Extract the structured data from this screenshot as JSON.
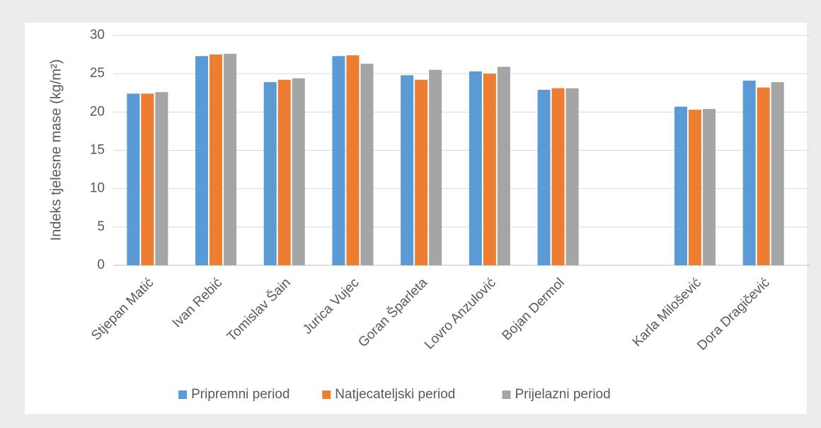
{
  "chart_data": {
    "type": "bar",
    "y_label": "Indeks tjelesne mase (kg/m²)",
    "categories": [
      "Stjepan Matić",
      "Ivan Rebić",
      "Tomislav Šain",
      "Jurica Vujec",
      "Goran Šparleta",
      "Lovro Anzulović",
      "Bojan Dermol",
      null,
      "Karla Milošević",
      "Dora Dragičević"
    ],
    "series": [
      {
        "name": "Pripremni period",
        "color": "#5b9bd5",
        "values": [
          22.4,
          27.3,
          23.9,
          27.3,
          24.8,
          25.3,
          22.9,
          null,
          20.7,
          24.1
        ]
      },
      {
        "name": "Natjecateljski period",
        "color": "#ed7d31",
        "values": [
          22.4,
          27.5,
          24.2,
          27.4,
          24.2,
          25.0,
          23.1,
          null,
          20.3,
          23.2
        ]
      },
      {
        "name": "Prijelazni period",
        "color": "#a5a5a5",
        "values": [
          22.6,
          27.6,
          24.4,
          26.3,
          25.5,
          25.9,
          23.1,
          null,
          20.4,
          23.9
        ]
      }
    ],
    "ylim": [
      0,
      30
    ],
    "yticks": [
      0,
      5,
      10,
      15,
      20,
      25,
      30
    ],
    "grid": true,
    "legend": "bottom"
  }
}
